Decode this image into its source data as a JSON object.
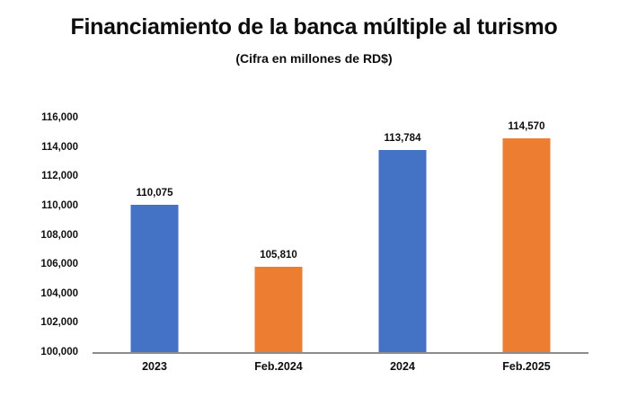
{
  "chart_data": {
    "type": "bar",
    "title": "Financiamiento de la banca múltiple al turismo",
    "subtitle": "(Cifra en millones de RD$)",
    "categories": [
      "2023",
      "Feb.2024",
      "2024",
      "Feb.2025"
    ],
    "values": [
      110075,
      105810,
      113784,
      114570
    ],
    "value_labels": [
      "110,075",
      "105,810",
      "113,784",
      "114,570"
    ],
    "bar_colors": [
      "#4472C4",
      "#ED7D31",
      "#4472C4",
      "#ED7D31"
    ],
    "ylim": [
      100000,
      116000
    ],
    "ytick_step": 2000,
    "ytick_labels": [
      "100,000",
      "102,000",
      "104,000",
      "106,000",
      "108,000",
      "110,000",
      "112,000",
      "114,000",
      "116,000"
    ],
    "xlabel": "",
    "ylabel": "",
    "grid": false,
    "legend": "none",
    "axis_line_color": "#8c8c8c",
    "background_color": "#ffffff",
    "text_color": "#0d0d0d"
  }
}
